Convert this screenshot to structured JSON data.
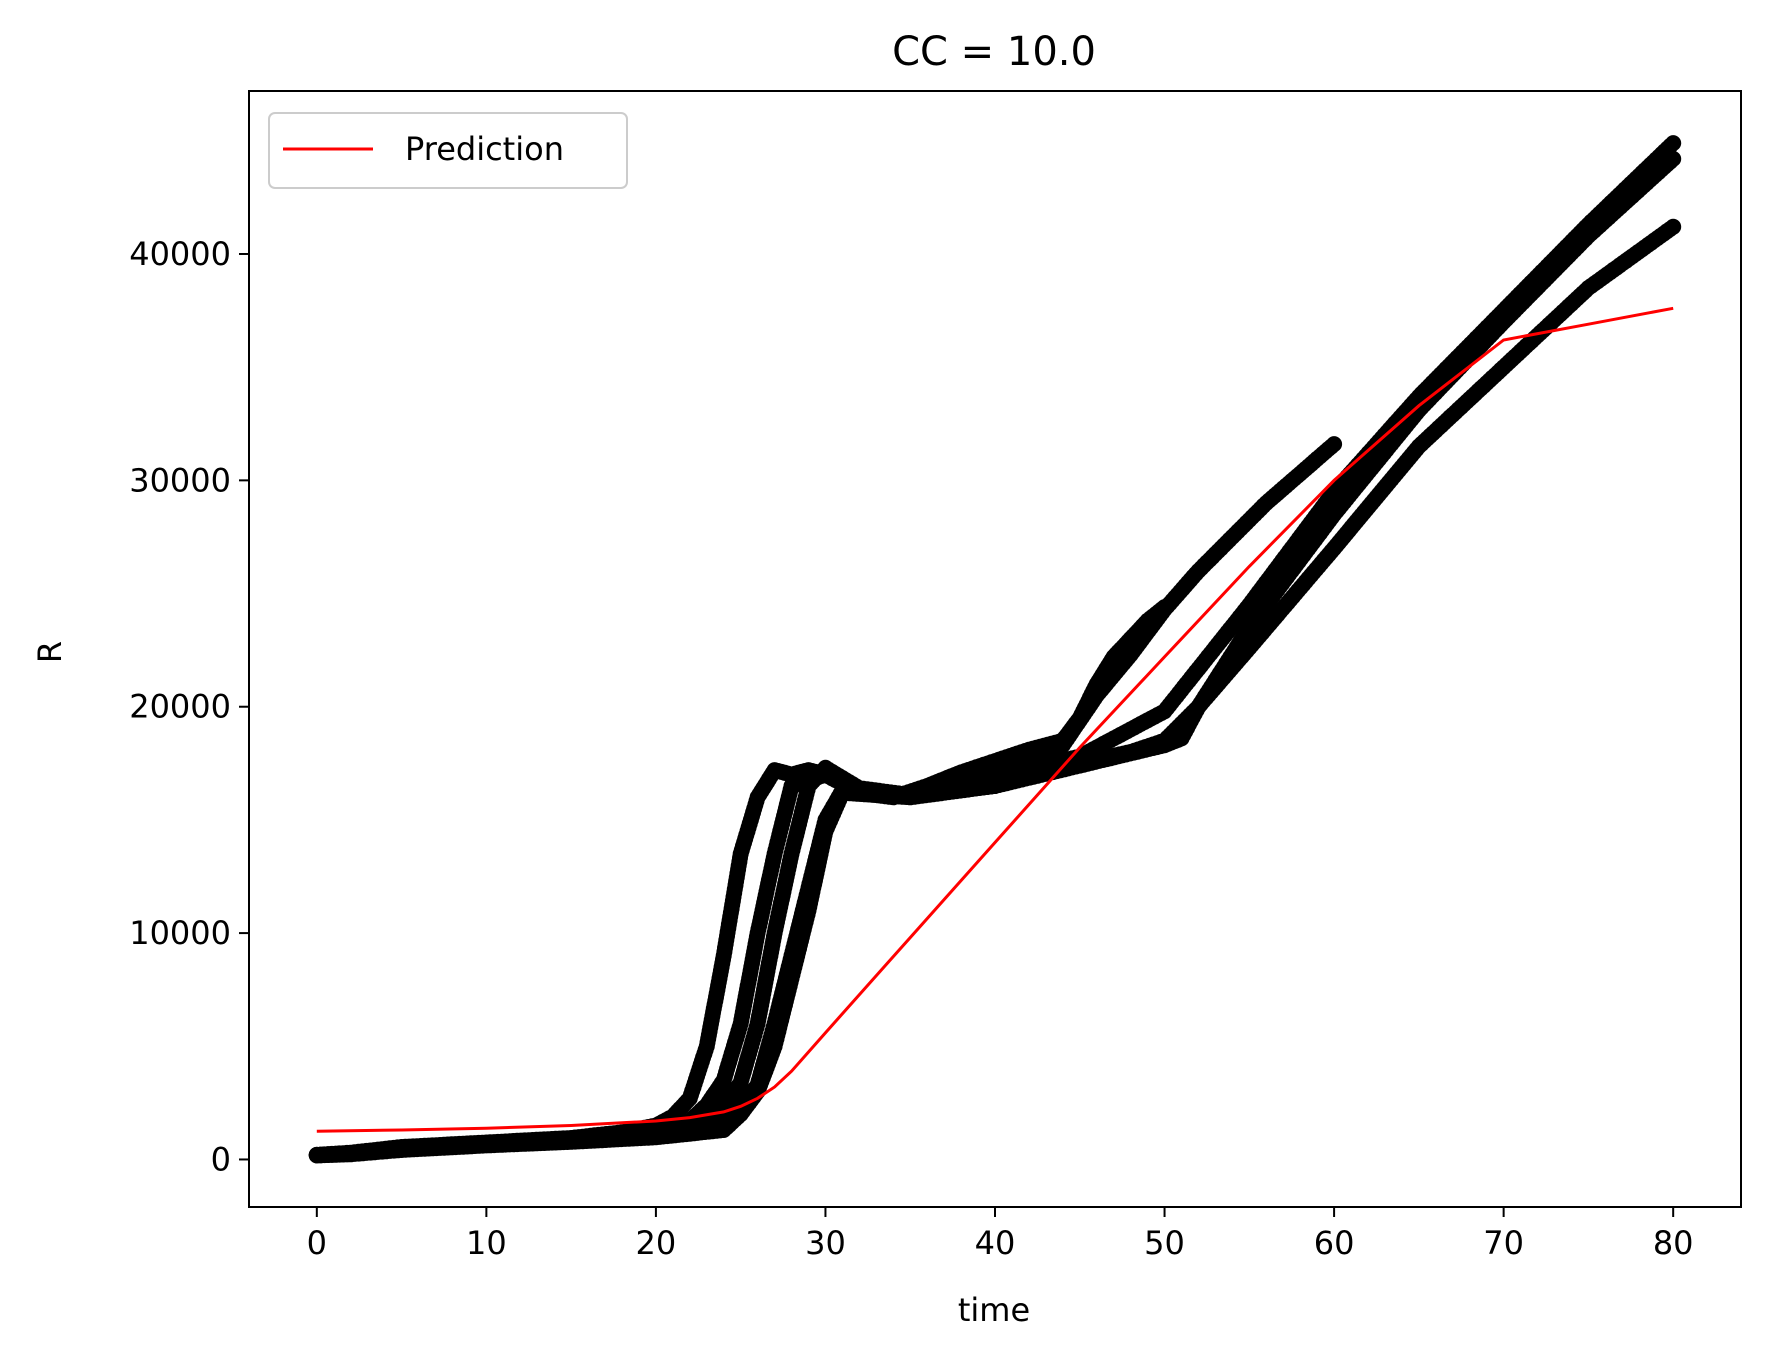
{
  "chart_data": {
    "type": "scatter",
    "title": "CC = 10.0",
    "xlabel": "time",
    "ylabel": "R",
    "xlim": [
      -4,
      84
    ],
    "ylim": [
      -2100,
      47200
    ],
    "x_ticks": [
      0,
      10,
      20,
      30,
      40,
      50,
      60,
      70,
      80
    ],
    "y_ticks": [
      0,
      10000,
      20000,
      30000,
      40000
    ],
    "x_tick_labels": [
      "0",
      "10",
      "20",
      "30",
      "40",
      "50",
      "60",
      "70",
      "80"
    ],
    "y_tick_labels": [
      "0",
      "10000",
      "20000",
      "30000",
      "40000"
    ],
    "grid": false,
    "legend": {
      "position": "top-left",
      "entries": [
        {
          "label": "Prediction",
          "color": "#ff0000",
          "style": "line"
        }
      ]
    },
    "prediction": {
      "name": "Prediction",
      "color": "#ff0000",
      "x": [
        0,
        5,
        10,
        15,
        20,
        22,
        24,
        25,
        26,
        27,
        28,
        30,
        35,
        40,
        45,
        50,
        55,
        60,
        65,
        70,
        75,
        80
      ],
      "y": [
        1250,
        1300,
        1380,
        1500,
        1700,
        1850,
        2100,
        2350,
        2700,
        3200,
        3900,
        5600,
        9800,
        14000,
        18200,
        22200,
        26200,
        30000,
        33300,
        36200,
        36900,
        37600
      ]
    },
    "observed": {
      "color": "#000000",
      "runs": [
        {
          "x": [
            0,
            2,
            5,
            10,
            15,
            18,
            20,
            21,
            22,
            23,
            24,
            25,
            26,
            27,
            28,
            29,
            30,
            32,
            34,
            36,
            38,
            40,
            42,
            44,
            46,
            48,
            50,
            52,
            54,
            56,
            58,
            60
          ],
          "y": [
            200,
            300,
            550,
            750,
            950,
            1200,
            1500,
            1900,
            2700,
            5000,
            9000,
            13500,
            16000,
            17200,
            17000,
            17200,
            17000,
            16300,
            16100,
            16300,
            16800,
            17300,
            17800,
            18300,
            20500,
            22300,
            24300,
            26000,
            27500,
            29000,
            30300,
            31600
          ]
        },
        {
          "x": [
            0,
            2,
            5,
            10,
            15,
            20,
            22,
            23,
            24,
            25,
            26,
            27,
            28,
            30,
            32,
            34,
            36,
            38,
            40,
            42,
            44,
            45,
            46,
            47,
            48,
            49,
            50
          ],
          "y": [
            200,
            280,
            500,
            700,
            850,
            1150,
            1700,
            2400,
            3500,
            6000,
            10000,
            13500,
            16500,
            17000,
            16200,
            16000,
            16500,
            17100,
            17600,
            18100,
            18500,
            19500,
            21000,
            22200,
            23000,
            23800,
            24400
          ]
        },
        {
          "x": [
            0,
            2,
            5,
            10,
            15,
            20,
            23,
            24,
            25,
            26,
            27,
            28,
            29,
            30,
            32,
            35,
            40,
            45,
            50,
            55,
            60,
            65,
            70,
            75,
            80
          ],
          "y": [
            200,
            280,
            480,
            680,
            820,
            1100,
            1500,
            2300,
            3400,
            6000,
            10000,
            13500,
            16500,
            17300,
            16400,
            16100,
            16900,
            17800,
            19800,
            24500,
            29500,
            33700,
            37500,
            41300,
            44900
          ]
        },
        {
          "x": [
            0,
            2,
            5,
            10,
            15,
            20,
            24,
            25,
            26,
            27,
            28,
            29,
            30,
            31,
            33,
            35,
            40,
            45,
            48,
            50,
            52,
            55,
            60,
            65,
            70,
            75,
            80
          ],
          "y": [
            180,
            250,
            450,
            650,
            800,
            1000,
            1400,
            2200,
            3300,
            6000,
            9000,
            12000,
            15000,
            16300,
            16200,
            16100,
            16500,
            17500,
            18000,
            18500,
            20000,
            23500,
            28500,
            33100,
            37000,
            40800,
            44200
          ]
        },
        {
          "x": [
            0,
            2,
            5,
            10,
            15,
            20,
            24,
            25,
            26,
            27,
            28,
            29,
            30,
            31,
            33,
            35,
            40,
            45,
            50,
            51,
            52,
            55,
            60,
            65,
            70,
            75,
            80
          ],
          "y": [
            180,
            230,
            420,
            620,
            780,
            980,
            1300,
            2000,
            3000,
            5000,
            8000,
            11000,
            14500,
            16200,
            16100,
            16000,
            16500,
            17400,
            18300,
            18600,
            20000,
            22600,
            27000,
            31500,
            35000,
            38500,
            41200
          ]
        }
      ]
    }
  }
}
